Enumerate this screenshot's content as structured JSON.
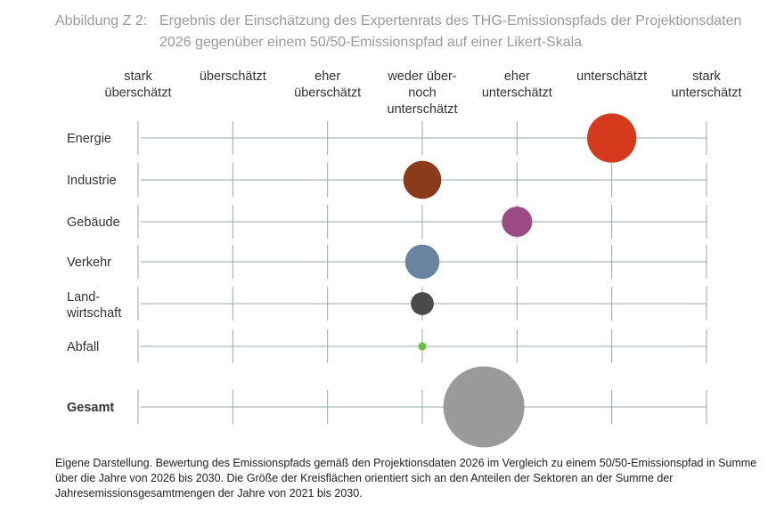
{
  "caption": {
    "number": "Abbildung Z 2:",
    "title": "Ergebnis der Einschätzung des Expertenrats des THG-Emissionspfads der Projektionsdaten 2026 gegenüber einem 50/50-Emissionspfad auf einer Likert-Skala"
  },
  "chart_data": {
    "type": "scatter",
    "title": "",
    "scale": [
      [
        "stark",
        "überschätzt"
      ],
      [
        "überschätzt"
      ],
      [
        "eher",
        "überschätzt"
      ],
      [
        "weder über-",
        "noch",
        "unterschätzt"
      ],
      [
        "eher",
        "unterschätzt"
      ],
      [
        "unterschätzt"
      ],
      [
        "stark",
        "unterschätzt"
      ]
    ],
    "categories": [
      {
        "label": [
          "Energie"
        ],
        "bold": false
      },
      {
        "label": [
          "Industrie"
        ],
        "bold": false
      },
      {
        "label": [
          "Gebäude"
        ],
        "bold": false
      },
      {
        "label": [
          "Verkehr"
        ],
        "bold": false
      },
      {
        "label": [
          "Land-",
          "wirtschaft"
        ],
        "bold": false
      },
      {
        "label": [
          "Abfall"
        ],
        "bold": false
      },
      {
        "label": [
          "Gesamt"
        ],
        "bold": true
      }
    ],
    "points": [
      {
        "category": "Energie",
        "value": 6.0,
        "relative_size": 0.37,
        "color": "#d63a1c"
      },
      {
        "category": "Industrie",
        "value": 4.0,
        "relative_size": 0.22,
        "color": "#8b3a1a"
      },
      {
        "category": "Gebäude",
        "value": 5.0,
        "relative_size": 0.14,
        "color": "#9c4a86"
      },
      {
        "category": "Verkehr",
        "value": 4.0,
        "relative_size": 0.18,
        "color": "#6a83a0"
      },
      {
        "category": "Landwirtschaft",
        "value": 4.0,
        "relative_size": 0.08,
        "color": "#4a4a4a"
      },
      {
        "category": "Abfall",
        "value": 4.0,
        "relative_size": 0.01,
        "color": "#6cc04a"
      },
      {
        "category": "Gesamt",
        "value": 4.65,
        "relative_size": 1.0,
        "color": "#9a9a9a"
      }
    ],
    "xlim": [
      1,
      7
    ],
    "grid": true
  },
  "colors": {
    "grid": "#9aa7ae",
    "label": "#333333",
    "caption": "#9a9a9a"
  },
  "footnote": "Eigene Darstellung. Bewertung des Emissionspfads gemäß den Projektionsdaten 2026 im Vergleich zu einem 50/50-Emissionspfad in Summe über die Jahre von 2026 bis 2030. Die Größe der Kreisflächen orientiert sich an den Anteilen der Sektoren an der Summe der Jahresemissionsgesamtmengen der Jahre von 2021 bis 2030."
}
